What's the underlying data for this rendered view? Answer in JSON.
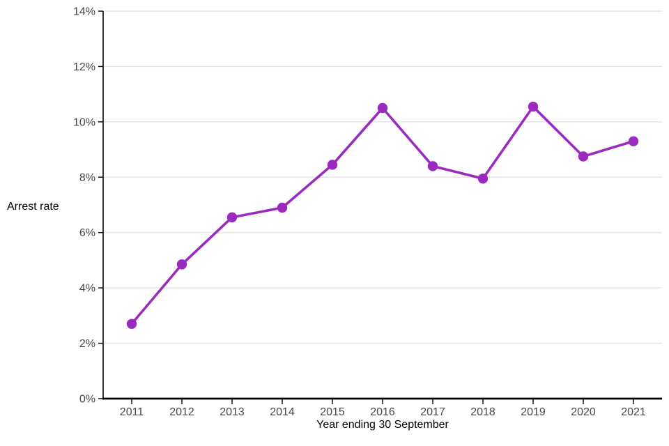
{
  "chart_data": {
    "type": "line",
    "title": "",
    "xlabel": "Year ending 30 September",
    "ylabel": "Arrest rate",
    "categories": [
      "2011",
      "2012",
      "2013",
      "2014",
      "2015",
      "2016",
      "2017",
      "2018",
      "2019",
      "2020",
      "2021"
    ],
    "series": [
      {
        "name": "Arrest rate",
        "values": [
          2.7,
          4.85,
          6.55,
          6.9,
          8.45,
          10.5,
          8.4,
          7.95,
          10.55,
          8.75,
          9.3
        ]
      }
    ],
    "ylim": [
      0,
      14
    ],
    "ytick_step": 2,
    "ytick_suffix": "%",
    "ytick_labels": [
      "0%",
      "2%",
      "4%",
      "6%",
      "8%",
      "10%",
      "12%",
      "14%"
    ],
    "grid": "horizontal",
    "legend": "none",
    "marker": "circle"
  },
  "colors": {
    "series_line": "#9A2BBE",
    "marker_fill": "#9A2BBE",
    "gridline": "#E3E3E3",
    "axis_line": "#000000",
    "tick_label": "#474747",
    "axis_title": "#000000",
    "background": "#FFFFFF"
  }
}
